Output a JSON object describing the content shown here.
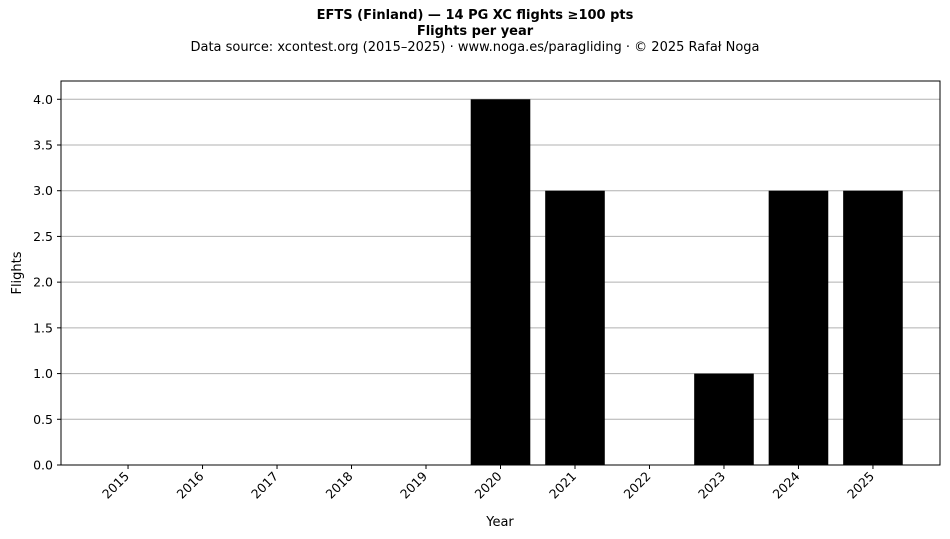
{
  "chart_data": {
    "type": "bar",
    "title": "EFTS (Finland)  —  14 PG XC flights ≥100 pts",
    "subtitle": "Flights per year",
    "source_note": "Data source: xcontest.org (2015–2025)  ·  www.noga.es/paragliding  ·  © 2025 Rafał Noga",
    "xlabel": "Year",
    "ylabel": "Flights",
    "categories": [
      "2015",
      "2016",
      "2017",
      "2018",
      "2019",
      "2020",
      "2021",
      "2022",
      "2023",
      "2024",
      "2025"
    ],
    "values": [
      0,
      0,
      0,
      0,
      0,
      4,
      3,
      0,
      1,
      3,
      3
    ],
    "ylim": [
      0,
      4.2
    ],
    "yticks": [
      "0.0",
      "0.5",
      "1.0",
      "1.5",
      "2.0",
      "2.5",
      "3.0",
      "3.5",
      "4.0"
    ],
    "grid": "y",
    "bar_color": "#000000",
    "grid_color": "#b0b0b0"
  }
}
